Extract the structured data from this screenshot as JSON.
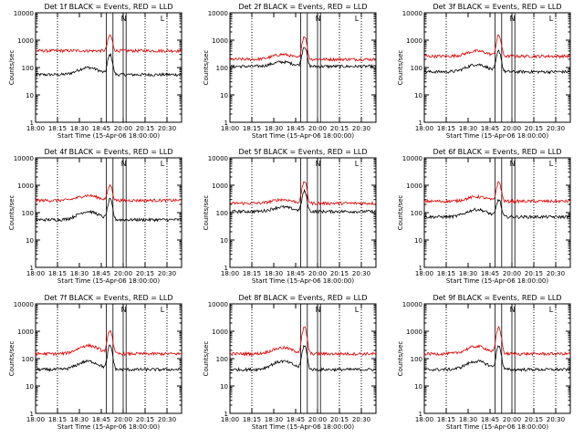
{
  "colors": {
    "events": "#000000",
    "lld": "#e00000",
    "axis": "#000000"
  },
  "chart_data": [
    {
      "type": "line",
      "title": "Det 1f BLACK = Events, RED = LLD",
      "xlabel": "Start Time (15-Apr-06 18:00:00)",
      "ylabel": "Counts/sec",
      "yscale": "log",
      "ylim": [
        1,
        10000
      ],
      "x_ticks": [
        "18:00",
        "18:15",
        "18:30",
        "18:45",
        "20:00",
        "20:15",
        "20:30"
      ],
      "y_ticks": [
        "1",
        "10",
        "100",
        "1000",
        "10000"
      ],
      "flag_labels": [
        "N",
        "L"
      ],
      "series": [
        {
          "color": "black",
          "base": 55,
          "hump": 100,
          "peak": 300
        },
        {
          "color": "red",
          "base": 410,
          "hump": null,
          "peak": 1500
        }
      ]
    },
    {
      "type": "line",
      "title": "Det 2f BLACK = Events, RED = LLD",
      "xlabel": "Start Time (15-Apr-06 18:00:00)",
      "ylabel": "Counts/sec",
      "yscale": "log",
      "ylim": [
        1,
        10000
      ],
      "x_ticks": [
        "18:00",
        "18:15",
        "18:30",
        "18:45",
        "20:00",
        "20:15",
        "20:30"
      ],
      "y_ticks": [
        "1",
        "10",
        "100",
        "1000",
        "10000"
      ],
      "flag_labels": [
        "N",
        "L"
      ],
      "series": [
        {
          "color": "black",
          "base": 110,
          "hump": 160,
          "peak": 600
        },
        {
          "color": "red",
          "base": 200,
          "hump": 300,
          "peak": 1400
        }
      ]
    },
    {
      "type": "line",
      "title": "Det 3f BLACK = Events, RED = LLD",
      "xlabel": "Start Time (15-Apr-06 18:00:00)",
      "ylabel": "Counts/sec",
      "yscale": "log",
      "ylim": [
        1,
        10000
      ],
      "x_ticks": [
        "18:00",
        "18:15",
        "18:30",
        "18:45",
        "20:00",
        "20:15",
        "20:30"
      ],
      "y_ticks": [
        "1",
        "10",
        "100",
        "1000",
        "10000"
      ],
      "flag_labels": [
        "N",
        "L"
      ],
      "series": [
        {
          "color": "black",
          "base": 70,
          "hump": 130,
          "peak": 400
        },
        {
          "color": "red",
          "base": 260,
          "hump": 400,
          "peak": 1500
        }
      ]
    },
    {
      "type": "line",
      "title": "Det 4f BLACK = Events, RED = LLD",
      "xlabel": "Start Time (15-Apr-06 18:00:00)",
      "ylabel": "Counts/sec",
      "yscale": "log",
      "ylim": [
        1,
        10000
      ],
      "x_ticks": [
        "18:00",
        "18:15",
        "18:30",
        "18:45",
        "20:00",
        "20:15",
        "20:30"
      ],
      "y_ticks": [
        "1",
        "10",
        "100",
        "1000",
        "10000"
      ],
      "flag_labels": [
        "N",
        "L"
      ],
      "series": [
        {
          "color": "black",
          "base": 55,
          "hump": 110,
          "peak": 300
        },
        {
          "color": "red",
          "base": 280,
          "hump": 420,
          "peak": 1000
        }
      ]
    },
    {
      "type": "line",
      "title": "Det 5f BLACK = Events, RED = LLD",
      "xlabel": "Start Time (15-Apr-06 18:00:00)",
      "ylabel": "Counts/sec",
      "yscale": "log",
      "ylim": [
        1,
        10000
      ],
      "x_ticks": [
        "18:00",
        "18:15",
        "18:30",
        "18:45",
        "20:00",
        "20:15",
        "20:30"
      ],
      "y_ticks": [
        "1",
        "10",
        "100",
        "1000",
        "10000"
      ],
      "flag_labels": [
        "N",
        "L"
      ],
      "series": [
        {
          "color": "black",
          "base": 110,
          "hump": 160,
          "peak": 600
        },
        {
          "color": "red",
          "base": 220,
          "hump": 300,
          "peak": 1400
        }
      ]
    },
    {
      "type": "line",
      "title": "Det 6f BLACK = Events, RED = LLD",
      "xlabel": "Start Time (15-Apr-06 18:00:00)",
      "ylabel": "Counts/sec",
      "yscale": "log",
      "ylim": [
        1,
        10000
      ],
      "x_ticks": [
        "18:00",
        "18:15",
        "18:30",
        "18:45",
        "20:00",
        "20:15",
        "20:30"
      ],
      "y_ticks": [
        "1",
        "10",
        "100",
        "1000",
        "10000"
      ],
      "flag_labels": [
        "N",
        "L"
      ],
      "series": [
        {
          "color": "black",
          "base": 70,
          "hump": 130,
          "peak": 300
        },
        {
          "color": "red",
          "base": 260,
          "hump": 380,
          "peak": 1300
        }
      ]
    },
    {
      "type": "line",
      "title": "Det 7f BLACK = Events, RED = LLD",
      "xlabel": "Start Time (15-Apr-06 18:00:00)",
      "ylabel": "Counts/sec",
      "yscale": "log",
      "ylim": [
        1,
        10000
      ],
      "x_ticks": [
        "18:00",
        "18:15",
        "18:30",
        "18:45",
        "20:00",
        "20:15",
        "20:30"
      ],
      "y_ticks": [
        "1",
        "10",
        "100",
        "1000",
        "10000"
      ],
      "flag_labels": [
        "N",
        "L"
      ],
      "series": [
        {
          "color": "black",
          "base": 40,
          "hump": 80,
          "peak": 300
        },
        {
          "color": "red",
          "base": 150,
          "hump": 300,
          "peak": 1100
        }
      ]
    },
    {
      "type": "line",
      "title": "Det 8f BLACK = Events, RED = LLD",
      "xlabel": "Start Time (15-Apr-06 18:00:00)",
      "ylabel": "Counts/sec",
      "yscale": "log",
      "ylim": [
        1,
        10000
      ],
      "x_ticks": [
        "18:00",
        "18:15",
        "18:30",
        "18:45",
        "20:00",
        "20:15",
        "20:30"
      ],
      "y_ticks": [
        "1",
        "10",
        "100",
        "1000",
        "10000"
      ],
      "flag_labels": [
        "N",
        "L"
      ],
      "series": [
        {
          "color": "black",
          "base": 40,
          "hump": 80,
          "peak": 300
        },
        {
          "color": "red",
          "base": 150,
          "hump": 250,
          "peak": 1400
        }
      ]
    },
    {
      "type": "line",
      "title": "Det 9f BLACK = Events, RED = LLD",
      "xlabel": "Start Time (15-Apr-06 18:00:00)",
      "ylabel": "Counts/sec",
      "yscale": "log",
      "ylim": [
        1,
        10000
      ],
      "x_ticks": [
        "18:00",
        "18:15",
        "18:30",
        "18:45",
        "20:00",
        "20:15",
        "20:30"
      ],
      "y_ticks": [
        "1",
        "10",
        "100",
        "1000",
        "10000"
      ],
      "flag_labels": [
        "N",
        "L"
      ],
      "series": [
        {
          "color": "black",
          "base": 40,
          "hump": 80,
          "peak": 300
        },
        {
          "color": "red",
          "base": 150,
          "hump": 280,
          "peak": 1400
        }
      ]
    }
  ]
}
